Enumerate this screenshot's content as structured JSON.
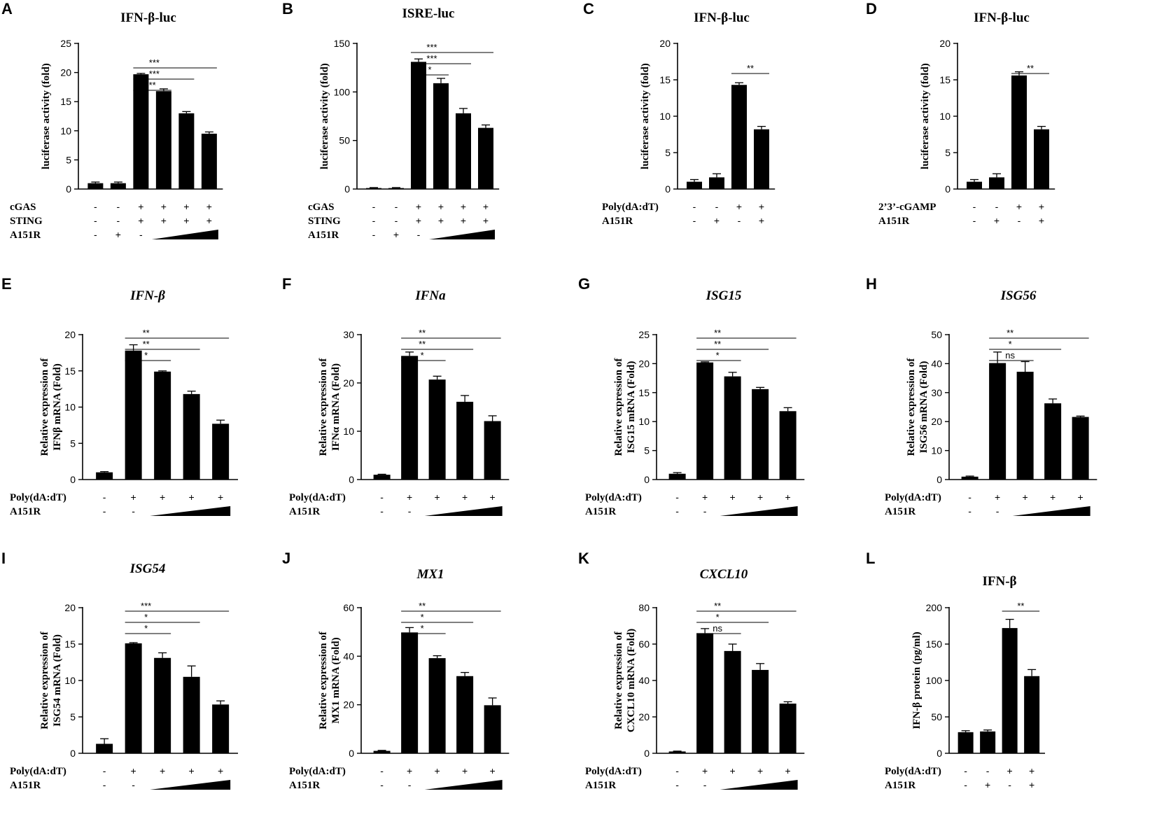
{
  "chart_data": [
    {
      "letter": "A",
      "type": "bar",
      "title": "IFN-β-luc",
      "title_italic": false,
      "ylabel": "luciferase activity (fold)",
      "ylim": [
        0,
        25
      ],
      "yticks": [
        0,
        5,
        10,
        15,
        20,
        25
      ],
      "values": [
        1.0,
        1.0,
        19.7,
        16.8,
        13.0,
        9.5
      ],
      "errors": [
        0.2,
        0.2,
        0.15,
        0.4,
        0.3,
        0.3
      ],
      "rows": [
        {
          "label": "cGAS",
          "symbols": [
            "-",
            "-",
            "+",
            "+",
            "+",
            "+"
          ]
        },
        {
          "label": "STING",
          "symbols": [
            "-",
            "-",
            "+",
            "+",
            "+",
            "+"
          ]
        },
        {
          "label": "A151R",
          "symbols": [
            "-",
            "+",
            "-"
          ],
          "gradient_from": 3
        }
      ],
      "significance": [
        {
          "from": 2,
          "to": 3,
          "label": "**"
        },
        {
          "from": 2,
          "to": 4,
          "label": "***"
        },
        {
          "from": 2,
          "to": 5,
          "label": "***"
        }
      ]
    },
    {
      "letter": "B",
      "type": "bar",
      "title": "ISRE-luc",
      "title_italic": false,
      "ylabel": "luciferase activity (fold)",
      "ylim": [
        0,
        150
      ],
      "yticks": [
        0,
        50,
        100,
        150
      ],
      "values": [
        1,
        1,
        131,
        109,
        78,
        63
      ],
      "errors": [
        0.5,
        0.5,
        3,
        5,
        5,
        3
      ],
      "rows": [
        {
          "label": "cGAS",
          "symbols": [
            "-",
            "-",
            "+",
            "+",
            "+",
            "+"
          ]
        },
        {
          "label": "STING",
          "symbols": [
            "-",
            "-",
            "+",
            "+",
            "+",
            "+"
          ]
        },
        {
          "label": "A151R",
          "symbols": [
            "-",
            "+",
            "-"
          ],
          "gradient_from": 3
        }
      ],
      "significance": [
        {
          "from": 2,
          "to": 3,
          "label": "*"
        },
        {
          "from": 2,
          "to": 4,
          "label": "***"
        },
        {
          "from": 2,
          "to": 5,
          "label": "***"
        }
      ]
    },
    {
      "letter": "C",
      "type": "bar",
      "title": "IFN-β-luc",
      "title_italic": false,
      "ylabel": "luciferase activity (fold)",
      "ylim": [
        0,
        20
      ],
      "yticks": [
        0,
        5,
        10,
        15,
        20
      ],
      "values": [
        1.0,
        1.6,
        14.3,
        8.2
      ],
      "errors": [
        0.3,
        0.5,
        0.3,
        0.4
      ],
      "rows": [
        {
          "label": "Poly(dA:dT)",
          "symbols": [
            "-",
            "-",
            "+",
            "+"
          ]
        },
        {
          "label": "A151R",
          "symbols": [
            "-",
            "+",
            "-",
            "+"
          ]
        }
      ],
      "significance": [
        {
          "from": 2,
          "to": 3,
          "label": "**"
        }
      ]
    },
    {
      "letter": "D",
      "type": "bar",
      "title": "IFN-β-luc",
      "title_italic": false,
      "ylabel": "luciferase activity (fold)",
      "ylim": [
        0,
        20
      ],
      "yticks": [
        0,
        5,
        10,
        15,
        20
      ],
      "values": [
        1.0,
        1.6,
        15.6,
        8.2
      ],
      "errors": [
        0.3,
        0.5,
        0.5,
        0.4
      ],
      "rows": [
        {
          "label": "2’3’-cGAMP",
          "symbols": [
            "-",
            "-",
            "+",
            "+"
          ]
        },
        {
          "label": "A151R",
          "symbols": [
            "-",
            "+",
            "-",
            "+"
          ]
        }
      ],
      "significance": [
        {
          "from": 2,
          "to": 3,
          "label": "**"
        }
      ]
    },
    {
      "letter": "E",
      "type": "bar",
      "title": "IFN-β",
      "title_italic": true,
      "ylabel": "Relative expression of IFNβ mRNA (Fold)",
      "ylim": [
        0,
        20
      ],
      "yticks": [
        0,
        5,
        10,
        15,
        20
      ],
      "values": [
        1.0,
        17.8,
        14.9,
        11.8,
        7.7
      ],
      "errors": [
        0.1,
        0.8,
        0.1,
        0.4,
        0.5
      ],
      "rows": [
        {
          "label": "Poly(dA:dT)",
          "symbols": [
            "-",
            "+",
            "+",
            "+",
            "+"
          ]
        },
        {
          "label": "A151R",
          "symbols": [
            "-",
            "-"
          ],
          "gradient_from": 2
        }
      ],
      "significance": [
        {
          "from": 1,
          "to": 2,
          "label": "*"
        },
        {
          "from": 1,
          "to": 3,
          "label": "**"
        },
        {
          "from": 1,
          "to": 4,
          "label": "**"
        }
      ]
    },
    {
      "letter": "F",
      "type": "bar",
      "title": "IFNa",
      "title_italic": true,
      "ylabel": "Relative expression of IFNα mRNA (Fold)",
      "ylim": [
        0,
        30
      ],
      "yticks": [
        0,
        10,
        20,
        30
      ],
      "values": [
        1.0,
        25.6,
        20.7,
        16.1,
        12.1
      ],
      "errors": [
        0.1,
        0.8,
        0.7,
        1.3,
        1.1
      ],
      "rows": [
        {
          "label": "Poly(dA:dT)",
          "symbols": [
            "-",
            "+",
            "+",
            "+",
            "+"
          ]
        },
        {
          "label": "A151R",
          "symbols": [
            "-",
            "-"
          ],
          "gradient_from": 2
        }
      ],
      "significance": [
        {
          "from": 1,
          "to": 2,
          "label": "*"
        },
        {
          "from": 1,
          "to": 3,
          "label": "**"
        },
        {
          "from": 1,
          "to": 4,
          "label": "**"
        }
      ]
    },
    {
      "letter": "G",
      "type": "bar",
      "title": "ISG15",
      "title_italic": true,
      "ylabel": "Relative expression of ISG15 mRNA (Fold)",
      "ylim": [
        0,
        25
      ],
      "yticks": [
        0,
        5,
        10,
        15,
        20,
        25
      ],
      "values": [
        1.0,
        20.2,
        17.8,
        15.6,
        11.8
      ],
      "errors": [
        0.2,
        0.1,
        0.7,
        0.3,
        0.6
      ],
      "rows": [
        {
          "label": "Poly(dA:dT)",
          "symbols": [
            "-",
            "+",
            "+",
            "+",
            "+"
          ]
        },
        {
          "label": "A151R",
          "symbols": [
            "-",
            "-"
          ],
          "gradient_from": 2
        }
      ],
      "significance": [
        {
          "from": 1,
          "to": 2,
          "label": "*"
        },
        {
          "from": 1,
          "to": 3,
          "label": "**"
        },
        {
          "from": 1,
          "to": 4,
          "label": "**"
        }
      ]
    },
    {
      "letter": "H",
      "type": "bar",
      "title": "ISG56",
      "title_italic": true,
      "ylabel": "Relative expression of ISG56 mRNA (Fold)",
      "ylim": [
        0,
        50
      ],
      "yticks": [
        0,
        10,
        20,
        30,
        40,
        50
      ],
      "values": [
        1.0,
        40.2,
        37.2,
        26.3,
        21.6
      ],
      "errors": [
        0.2,
        3.8,
        3.5,
        1.5,
        0.3
      ],
      "rows": [
        {
          "label": "Poly(dA:dT)",
          "symbols": [
            "-",
            "+",
            "+",
            "+",
            "+"
          ]
        },
        {
          "label": "A151R",
          "symbols": [
            "-",
            "-"
          ],
          "gradient_from": 2
        }
      ],
      "significance": [
        {
          "from": 1,
          "to": 2,
          "label": "ns"
        },
        {
          "from": 1,
          "to": 3,
          "label": "*"
        },
        {
          "from": 1,
          "to": 4,
          "label": "**"
        }
      ]
    },
    {
      "letter": "I",
      "type": "bar",
      "title": "ISG54",
      "title_italic": true,
      "ylabel": "Relative expression of ISG54 mRNA (Fold)",
      "ylim": [
        0,
        20
      ],
      "yticks": [
        0,
        5,
        10,
        15,
        20
      ],
      "values": [
        1.3,
        15.1,
        13.1,
        10.5,
        6.7
      ],
      "errors": [
        0.7,
        0.1,
        0.7,
        1.5,
        0.5
      ],
      "rows": [
        {
          "label": "Poly(dA:dT)",
          "symbols": [
            "-",
            "+",
            "+",
            "+",
            "+"
          ]
        },
        {
          "label": "A151R",
          "symbols": [
            "-",
            "-"
          ],
          "gradient_from": 2
        }
      ],
      "significance": [
        {
          "from": 1,
          "to": 2,
          "label": "*"
        },
        {
          "from": 1,
          "to": 3,
          "label": "*"
        },
        {
          "from": 1,
          "to": 4,
          "label": "***"
        }
      ]
    },
    {
      "letter": "J",
      "type": "bar",
      "title": "MX1",
      "title_italic": true,
      "ylabel": "Relative expression of MX1 mRNA (Fold)",
      "ylim": [
        0,
        60
      ],
      "yticks": [
        0,
        20,
        40,
        60
      ],
      "values": [
        1.0,
        49.8,
        39.2,
        31.8,
        19.8
      ],
      "errors": [
        0.2,
        2.0,
        1.0,
        1.5,
        3.0
      ],
      "rows": [
        {
          "label": "Poly(dA:dT)",
          "symbols": [
            "-",
            "+",
            "+",
            "+",
            "+"
          ]
        },
        {
          "label": "A151R",
          "symbols": [
            "-",
            "-"
          ],
          "gradient_from": 2
        }
      ],
      "significance": [
        {
          "from": 1,
          "to": 2,
          "label": "*"
        },
        {
          "from": 1,
          "to": 3,
          "label": "*"
        },
        {
          "from": 1,
          "to": 4,
          "label": "**"
        }
      ]
    },
    {
      "letter": "K",
      "type": "bar",
      "title": "CXCL10",
      "title_italic": true,
      "ylabel": "Relative expression of CXCL10 mRNA (Fold)",
      "ylim": [
        0,
        80
      ],
      "yticks": [
        0,
        20,
        40,
        60,
        80
      ],
      "values": [
        1.0,
        66.0,
        56.2,
        45.8,
        27.3
      ],
      "errors": [
        0.2,
        2.5,
        3.8,
        3.5,
        1.0
      ],
      "rows": [
        {
          "label": "Poly(dA:dT)",
          "symbols": [
            "-",
            "+",
            "+",
            "+",
            "+"
          ]
        },
        {
          "label": "A151R",
          "symbols": [
            "-",
            "-"
          ],
          "gradient_from": 2
        }
      ],
      "significance": [
        {
          "from": 1,
          "to": 2,
          "label": "ns"
        },
        {
          "from": 1,
          "to": 3,
          "label": "*"
        },
        {
          "from": 1,
          "to": 4,
          "label": "**"
        }
      ]
    },
    {
      "letter": "L",
      "type": "bar",
      "title": "IFN-β",
      "title_italic": false,
      "ylabel": "IFN-β protein (pg/ml)",
      "ylim": [
        0,
        200
      ],
      "yticks": [
        0,
        50,
        100,
        150,
        200
      ],
      "values": [
        29,
        30,
        172,
        106
      ],
      "errors": [
        2,
        2,
        12,
        9
      ],
      "rows": [
        {
          "label": "Poly(dA:dT)",
          "symbols": [
            "-",
            "-",
            "+",
            "+"
          ]
        },
        {
          "label": "A151R",
          "symbols": [
            "-",
            "+",
            "-",
            "+"
          ]
        }
      ],
      "significance": [
        {
          "from": 2,
          "to": 3,
          "label": "**"
        }
      ]
    }
  ]
}
